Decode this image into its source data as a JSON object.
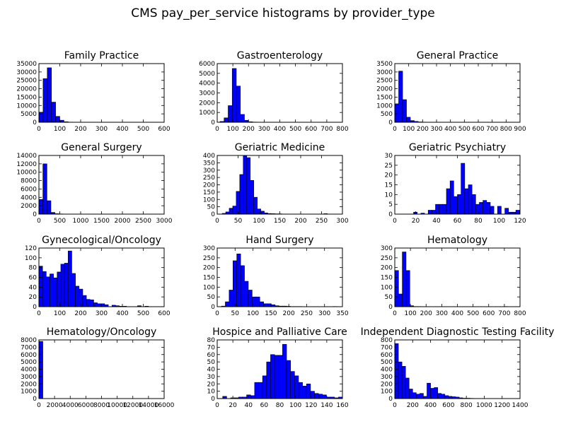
{
  "figure": {
    "title": "CMS pay_per_service histograms by provider_type",
    "bar_color": "#0000ff",
    "edge_color": "#000000"
  },
  "chart_data": [
    {
      "type": "bar",
      "title": "Family Practice",
      "xlim": [
        0,
        600
      ],
      "ylim": [
        0,
        35000
      ],
      "xticks": [
        0,
        100,
        200,
        300,
        400,
        500,
        600
      ],
      "yticks": [
        0,
        5000,
        10000,
        15000,
        20000,
        25000,
        30000,
        35000
      ],
      "bin_width": 20,
      "bins_start": 0,
      "values": [
        6000,
        26000,
        32500,
        12000,
        3500,
        1200,
        300,
        100,
        50,
        20,
        10,
        5,
        5,
        0,
        0,
        0,
        0,
        0,
        0,
        0,
        0,
        0,
        0,
        0,
        0,
        0,
        0,
        0,
        0,
        5
      ]
    },
    {
      "type": "bar",
      "title": "Gastroenterology",
      "xlim": [
        0,
        800
      ],
      "ylim": [
        0,
        6000
      ],
      "xticks": [
        0,
        100,
        200,
        300,
        400,
        500,
        600,
        700,
        800
      ],
      "yticks": [
        0,
        1000,
        2000,
        3000,
        4000,
        5000,
        6000
      ],
      "bin_width": 26,
      "bins_start": 18,
      "values": [
        80,
        450,
        1700,
        5500,
        3700,
        800,
        200,
        50,
        20,
        10,
        5,
        5,
        0,
        0,
        0,
        0,
        0,
        0,
        0,
        0,
        0,
        0,
        0,
        0,
        0,
        0,
        0,
        0,
        0,
        5
      ]
    },
    {
      "type": "bar",
      "title": "General Practice",
      "xlim": [
        0,
        900
      ],
      "ylim": [
        0,
        3500
      ],
      "xticks": [
        0,
        100,
        200,
        300,
        400,
        500,
        600,
        700,
        800,
        900
      ],
      "yticks": [
        0,
        500,
        1000,
        1500,
        2000,
        2500,
        3000,
        3500
      ],
      "bin_width": 28,
      "bins_start": 0,
      "values": [
        1100,
        3050,
        1350,
        300,
        100,
        50,
        20,
        10,
        5,
        5,
        0,
        0,
        0,
        0,
        0,
        0,
        0,
        0,
        0,
        0,
        0,
        0,
        0,
        0,
        0,
        0,
        0,
        0,
        0,
        5
      ]
    },
    {
      "type": "bar",
      "title": "General Surgery",
      "xlim": [
        0,
        3000
      ],
      "ylim": [
        0,
        14000
      ],
      "xticks": [
        0,
        500,
        1000,
        1500,
        2000,
        2500,
        3000
      ],
      "yticks": [
        0,
        2000,
        4000,
        6000,
        8000,
        10000,
        12000,
        14000
      ],
      "bin_width": 96,
      "bins_start": 0,
      "values": [
        3500,
        12000,
        3200,
        400,
        100,
        50,
        20,
        10,
        5,
        5,
        0,
        0,
        0,
        0,
        0,
        0,
        0,
        0,
        0,
        0,
        0,
        0,
        0,
        0,
        0,
        0,
        0,
        0,
        0,
        5
      ]
    },
    {
      "type": "bar",
      "title": "Geriatric Medicine",
      "xlim": [
        0,
        300
      ],
      "ylim": [
        0,
        400
      ],
      "xticks": [
        0,
        50,
        100,
        150,
        200,
        250,
        300
      ],
      "yticks": [
        0,
        50,
        100,
        150,
        200,
        250,
        300,
        350,
        400
      ],
      "bin_width": 8.4,
      "bins_start": 12,
      "values": [
        5,
        15,
        40,
        55,
        155,
        270,
        400,
        385,
        230,
        115,
        35,
        20,
        8,
        4,
        3,
        2,
        2,
        1,
        1,
        0,
        0,
        0,
        0,
        0,
        0,
        0,
        0,
        0,
        0,
        3
      ]
    },
    {
      "type": "bar",
      "title": "Geriatric Psychiatry",
      "xlim": [
        0,
        120
      ],
      "ylim": [
        0,
        30
      ],
      "xticks": [
        0,
        20,
        40,
        60,
        80,
        100,
        120
      ],
      "yticks": [
        0,
        5,
        10,
        15,
        20,
        25,
        30
      ],
      "bin_width": 3.5,
      "bins_start": 18,
      "values": [
        1,
        0,
        0.5,
        0,
        2,
        2,
        5,
        5,
        5,
        13,
        17,
        9,
        10,
        26,
        13,
        15,
        10,
        5,
        6,
        7,
        6,
        4,
        0,
        4,
        0,
        3,
        1,
        1,
        2,
        1
      ]
    },
    {
      "type": "bar",
      "title": "Gynecological/Oncology",
      "xlim": [
        0,
        600
      ],
      "ylim": [
        0,
        120
      ],
      "xticks": [
        0,
        100,
        200,
        300,
        400,
        500,
        600
      ],
      "yticks": [
        0,
        20,
        40,
        60,
        80,
        100,
        120
      ],
      "bin_width": 17.5,
      "bins_start": 0,
      "values": [
        83,
        72,
        61,
        67,
        59,
        71,
        87,
        89,
        114,
        68,
        42,
        36,
        23,
        15,
        14,
        8,
        6,
        6,
        4,
        0,
        3,
        2,
        1,
        1,
        0,
        0,
        0,
        2,
        0,
        1
      ]
    },
    {
      "type": "bar",
      "title": "Hand Surgery",
      "xlim": [
        0,
        350
      ],
      "ylim": [
        0,
        300
      ],
      "xticks": [
        0,
        50,
        100,
        150,
        200,
        250,
        300,
        350
      ],
      "yticks": [
        0,
        50,
        100,
        150,
        200,
        250,
        300
      ],
      "bin_width": 10.7,
      "bins_start": 12,
      "values": [
        3,
        25,
        85,
        235,
        270,
        210,
        130,
        85,
        50,
        50,
        25,
        15,
        15,
        10,
        5,
        3,
        3,
        2,
        1,
        1,
        1,
        0,
        0,
        0,
        0,
        0,
        0,
        0,
        0,
        1
      ]
    },
    {
      "type": "bar",
      "title": "Hematology",
      "xlim": [
        0,
        800
      ],
      "ylim": [
        0,
        300
      ],
      "xticks": [
        0,
        100,
        200,
        300,
        400,
        500,
        600,
        700,
        800
      ],
      "yticks": [
        0,
        50,
        100,
        150,
        200,
        250,
        300
      ],
      "bin_width": 24,
      "bins_start": 0,
      "values": [
        185,
        65,
        280,
        185,
        5,
        1,
        1,
        0,
        0,
        0,
        0,
        0,
        0,
        0,
        0,
        0,
        0,
        0,
        0,
        0,
        0,
        0,
        0,
        0,
        0,
        0,
        0,
        0,
        0,
        1
      ]
    },
    {
      "type": "bar",
      "title": "Hematology/Oncology",
      "xlim": [
        0,
        16000
      ],
      "ylim": [
        0,
        8000
      ],
      "xticks": [
        0,
        2000,
        4000,
        6000,
        8000,
        10000,
        12000,
        14000,
        16000
      ],
      "yticks": [
        0,
        1000,
        2000,
        3000,
        4000,
        5000,
        6000,
        7000,
        8000
      ],
      "bin_width": 500,
      "bins_start": 0,
      "values": [
        7800,
        10,
        2,
        1,
        1,
        0,
        0,
        0,
        0,
        0,
        0,
        0,
        0,
        0,
        0,
        0,
        0,
        0,
        0,
        0,
        0,
        0,
        0,
        0,
        0,
        0,
        0,
        0,
        0,
        1
      ]
    },
    {
      "type": "bar",
      "title": "Hospice and Palliative Care",
      "xlim": [
        0,
        160
      ],
      "ylim": [
        0,
        80
      ],
      "xticks": [
        0,
        20,
        40,
        60,
        80,
        100,
        120,
        140,
        160
      ],
      "yticks": [
        0,
        10,
        20,
        30,
        40,
        50,
        60,
        70,
        80
      ],
      "bin_width": 5.1,
      "bins_start": 7,
      "values": [
        3,
        0,
        1,
        1,
        2,
        2,
        5,
        4,
        22,
        22,
        31,
        50,
        60,
        59,
        59,
        74,
        52,
        37,
        31,
        22,
        17,
        20,
        10,
        7,
        6,
        5,
        2,
        2,
        1,
        2
      ]
    },
    {
      "type": "bar",
      "title": "Independent Diagnostic Testing Facility",
      "xlim": [
        0,
        1400
      ],
      "ylim": [
        0,
        800
      ],
      "xticks": [
        0,
        200,
        400,
        600,
        800,
        1000,
        1200,
        1400
      ],
      "yticks": [
        0,
        100,
        200,
        300,
        400,
        500,
        600,
        700,
        800
      ],
      "bin_width": 40,
      "bins_start": 0,
      "values": [
        750,
        500,
        440,
        280,
        130,
        80,
        60,
        70,
        30,
        210,
        140,
        150,
        70,
        60,
        40,
        30,
        25,
        20,
        10,
        5,
        5,
        3,
        2,
        2,
        1,
        1,
        1,
        0,
        0,
        1
      ]
    }
  ]
}
